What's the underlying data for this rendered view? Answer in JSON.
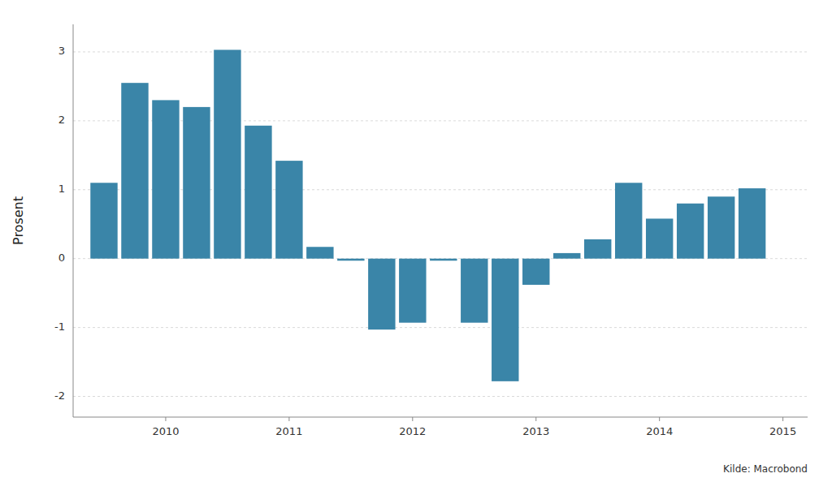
{
  "chart_data": {
    "type": "bar",
    "ylabel": "Prosent",
    "annotations": [
      "Kilde: Macrobond"
    ],
    "x": [
      2009.5,
      2009.75,
      2010.0,
      2010.25,
      2010.5,
      2010.75,
      2011.0,
      2011.25,
      2011.5,
      2011.75,
      2012.0,
      2012.25,
      2012.5,
      2012.75,
      2013.0,
      2013.25,
      2013.5,
      2013.75,
      2014.0,
      2014.25,
      2014.5,
      2014.75
    ],
    "values": [
      1.1,
      2.55,
      2.3,
      2.2,
      3.03,
      1.93,
      1.42,
      0.17,
      -0.03,
      -1.03,
      -0.93,
      -0.03,
      -0.93,
      -1.78,
      -0.38,
      0.08,
      0.28,
      1.1,
      0.58,
      0.8,
      0.9,
      1.02
    ],
    "color": "#3a85a8",
    "xlim": [
      2009.25,
      2015.2
    ],
    "ylim": [
      -2.3,
      3.4
    ],
    "xticks": [
      2010,
      2011,
      2012,
      2013,
      2014,
      2015
    ],
    "yticks": [
      -2,
      -1,
      0,
      1,
      2,
      3
    ],
    "grid": true
  }
}
